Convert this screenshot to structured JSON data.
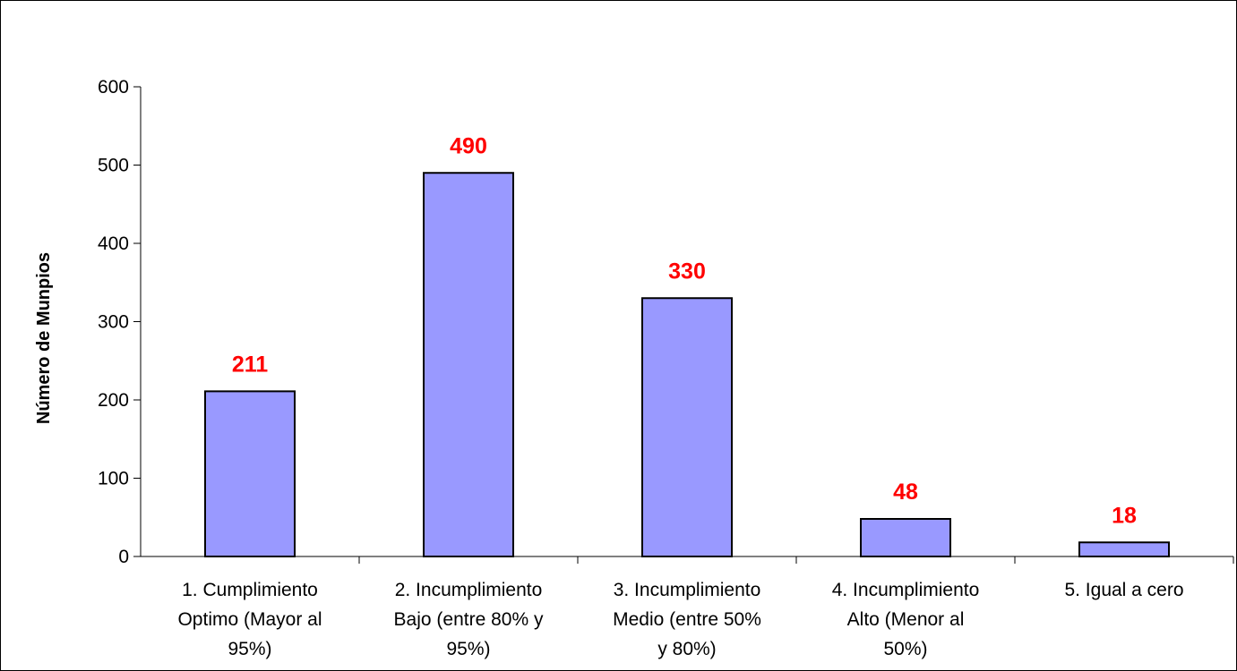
{
  "chart_data": {
    "type": "bar",
    "title": "",
    "xlabel": "",
    "ylabel": "Número de Munpios",
    "categories": [
      [
        "1. Cumplimiento",
        "Optimo (Mayor al",
        "95%)"
      ],
      [
        "2. Incumplimiento",
        "Bajo (entre 80% y",
        "95%)"
      ],
      [
        "3. Incumplimiento",
        "Medio (entre 50%",
        "y 80%)"
      ],
      [
        "4. Incumplimiento",
        "Alto (Menor al",
        "50%)"
      ],
      [
        "5. Igual a cero"
      ]
    ],
    "values": [
      211,
      490,
      330,
      48,
      18
    ],
    "data_labels": [
      "211",
      "490",
      "330",
      "48",
      "18"
    ],
    "ylim": [
      0,
      600
    ],
    "yticks": [
      "0",
      "100",
      "200",
      "300",
      "400",
      "500",
      "600"
    ],
    "grid": false,
    "legend": "none",
    "colors": {
      "bar_fill": "#9999FF",
      "bar_stroke": "#000000",
      "data_label": "#FF0000",
      "axis": "#000000"
    }
  }
}
